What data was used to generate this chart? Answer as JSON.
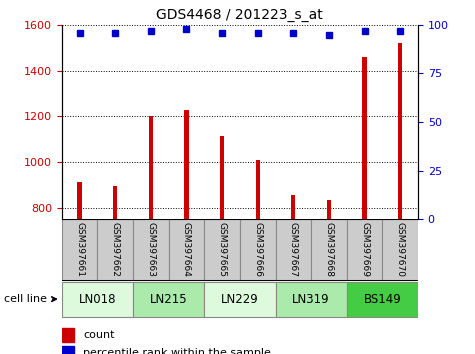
{
  "title": "GDS4468 / 201223_s_at",
  "samples": [
    "GSM397661",
    "GSM397662",
    "GSM397663",
    "GSM397664",
    "GSM397665",
    "GSM397666",
    "GSM397667",
    "GSM397668",
    "GSM397669",
    "GSM397670"
  ],
  "counts": [
    915,
    895,
    1200,
    1230,
    1115,
    1010,
    855,
    835,
    1460,
    1520
  ],
  "percentile_ranks": [
    96,
    96,
    97,
    98,
    96,
    96,
    96,
    95,
    97,
    97
  ],
  "ylim_left": [
    750,
    1600
  ],
  "ylim_right": [
    0,
    100
  ],
  "yticks_left": [
    800,
    1000,
    1200,
    1400,
    1600
  ],
  "yticks_right": [
    0,
    25,
    50,
    75,
    100
  ],
  "bar_color": "#cc0000",
  "dot_color": "#0000cc",
  "bar_width": 0.12,
  "cell_lines": [
    {
      "name": "LN018",
      "samples": [
        0,
        1
      ],
      "color": "#ddfadd"
    },
    {
      "name": "LN215",
      "samples": [
        2,
        3
      ],
      "color": "#aaeaaa"
    },
    {
      "name": "LN229",
      "samples": [
        4,
        5
      ],
      "color": "#ddfadd"
    },
    {
      "name": "LN319",
      "samples": [
        6,
        7
      ],
      "color": "#aaeaaa"
    },
    {
      "name": "BS149",
      "samples": [
        8,
        9
      ],
      "color": "#44cc44"
    }
  ],
  "cell_line_label": "cell line",
  "legend_count_label": "count",
  "legend_pct_label": "percentile rank within the sample",
  "grid_color": "#000000",
  "tick_area_color": "#cccccc",
  "bg_color": "#ffffff"
}
